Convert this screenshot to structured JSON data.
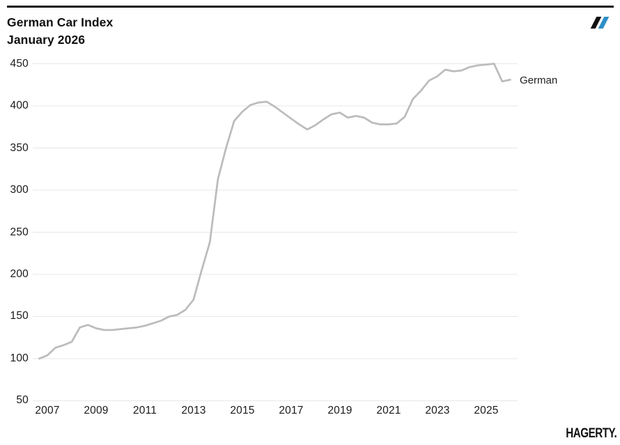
{
  "header": {
    "title_line1": "German Car Index",
    "title_line2": "January 2026"
  },
  "logo": {
    "label": "hagerty-double-slash",
    "slash1_color": "#111111",
    "slash2_color": "#2d8fc6"
  },
  "series_label": "German",
  "footer": {
    "brand": "HAGERTY."
  },
  "chart_data": {
    "type": "line",
    "title": "German Car Index",
    "subtitle": "January 2026",
    "grid": "horizontal",
    "grid_color": "#e7e7e7",
    "line_color": "#bcbcbc",
    "line_width": 2.75,
    "xlim": [
      2006.4,
      2026.3
    ],
    "ylim": [
      43.8,
      456.2
    ],
    "x_ticks": [
      2007,
      2009,
      2011,
      2013,
      2015,
      2017,
      2019,
      2021,
      2023,
      2025
    ],
    "y_ticks": [
      50,
      100,
      150,
      200,
      250,
      300,
      350,
      400,
      450
    ],
    "series": [
      {
        "name": "German",
        "x": [
          2006.667,
          2007.0,
          2007.333,
          2007.667,
          2008.0,
          2008.333,
          2008.667,
          2009.0,
          2009.333,
          2009.667,
          2010.0,
          2010.333,
          2010.667,
          2011.0,
          2011.333,
          2011.667,
          2012.0,
          2012.333,
          2012.667,
          2013.0,
          2013.333,
          2013.667,
          2014.0,
          2014.333,
          2014.667,
          2015.0,
          2015.333,
          2015.667,
          2016.0,
          2016.333,
          2016.667,
          2017.0,
          2017.333,
          2017.667,
          2018.0,
          2018.333,
          2018.667,
          2019.0,
          2019.333,
          2019.667,
          2020.0,
          2020.333,
          2020.667,
          2021.0,
          2021.333,
          2021.667,
          2022.0,
          2022.333,
          2022.667,
          2023.0,
          2023.333,
          2023.667,
          2024.0,
          2024.333,
          2024.667,
          2025.0,
          2025.333,
          2025.667,
          2026.0
        ],
        "values": [
          100,
          104,
          113,
          116,
          120,
          137,
          140,
          136,
          134,
          134,
          135,
          136,
          137,
          139,
          142,
          145,
          150,
          152,
          158,
          170,
          205,
          238,
          313,
          350,
          382,
          393,
          401,
          404,
          405,
          399,
          392,
          385,
          378,
          372,
          377,
          384,
          390,
          392,
          386,
          388,
          386,
          380,
          378,
          378,
          379,
          387,
          408,
          418,
          430,
          435,
          443,
          441,
          442,
          446,
          448,
          449,
          450,
          429,
          431
        ]
      }
    ]
  }
}
